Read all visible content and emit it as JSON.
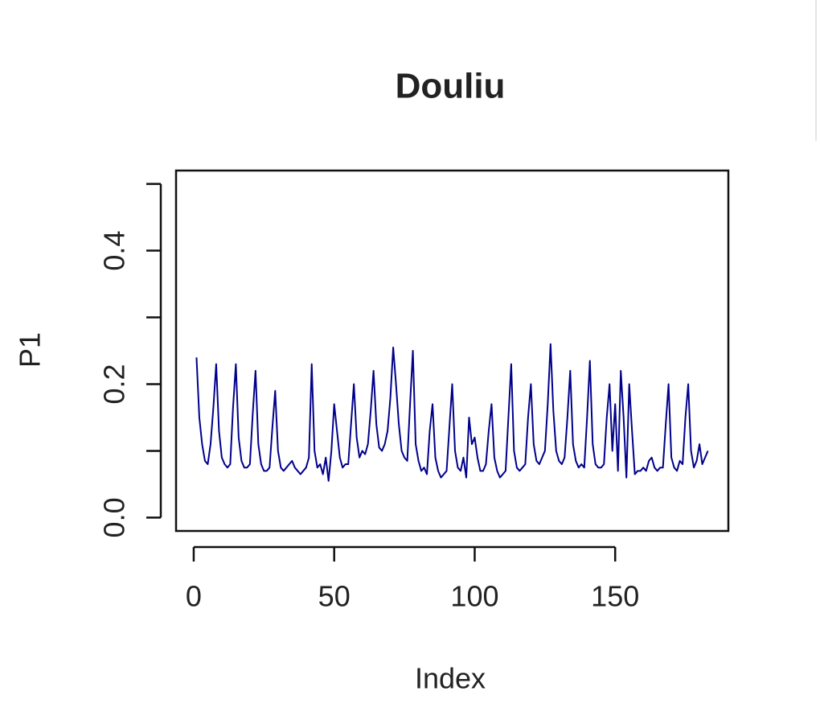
{
  "chart_data": {
    "type": "line",
    "title": "Douliu",
    "x_label": "Index",
    "y_label": "P1",
    "color": "#00008b",
    "x": [
      1,
      2,
      3,
      4,
      5,
      6,
      7,
      8,
      9,
      10,
      11,
      12,
      13,
      14,
      15,
      16,
      17,
      18,
      19,
      20,
      21,
      22,
      23,
      24,
      25,
      26,
      27,
      28,
      29,
      30,
      31,
      32,
      33,
      34,
      35,
      36,
      37,
      38,
      39,
      40,
      41,
      42,
      43,
      44,
      45,
      46,
      47,
      48,
      49,
      50,
      51,
      52,
      53,
      54,
      55,
      56,
      57,
      58,
      59,
      60,
      61,
      62,
      63,
      64,
      65,
      66,
      67,
      68,
      69,
      70,
      71,
      72,
      73,
      74,
      75,
      76,
      77,
      78,
      79,
      80,
      81,
      82,
      83,
      84,
      85,
      86,
      87,
      88,
      89,
      90,
      91,
      92,
      93,
      94,
      95,
      96,
      97,
      98,
      99,
      100,
      101,
      102,
      103,
      104,
      105,
      106,
      107,
      108,
      109,
      110,
      111,
      112,
      113,
      114,
      115,
      116,
      117,
      118,
      119,
      120,
      121,
      122,
      123,
      124,
      125,
      126,
      127,
      128,
      129,
      130,
      131,
      132,
      133,
      134,
      135,
      136,
      137,
      138,
      139,
      140,
      141,
      142,
      143,
      144,
      145,
      146,
      147,
      148,
      149,
      150,
      151,
      152,
      153,
      154,
      155,
      156,
      157,
      158,
      159,
      160,
      161,
      162,
      163,
      164,
      165,
      166,
      167,
      168,
      169,
      170,
      171,
      172,
      173,
      174,
      175,
      176,
      177,
      178,
      179,
      180,
      181,
      182,
      183
    ],
    "values": [
      0.24,
      0.15,
      0.11,
      0.085,
      0.08,
      0.11,
      0.165,
      0.23,
      0.13,
      0.09,
      0.08,
      0.075,
      0.08,
      0.165,
      0.23,
      0.12,
      0.085,
      0.075,
      0.075,
      0.08,
      0.155,
      0.22,
      0.11,
      0.08,
      0.07,
      0.07,
      0.075,
      0.135,
      0.19,
      0.1,
      0.075,
      0.07,
      0.075,
      0.08,
      0.085,
      0.075,
      0.07,
      0.065,
      0.07,
      0.075,
      0.09,
      0.23,
      0.1,
      0.075,
      0.08,
      0.065,
      0.09,
      0.055,
      0.1,
      0.17,
      0.13,
      0.09,
      0.075,
      0.08,
      0.08,
      0.14,
      0.2,
      0.12,
      0.09,
      0.1,
      0.095,
      0.11,
      0.16,
      0.22,
      0.14,
      0.105,
      0.1,
      0.11,
      0.13,
      0.18,
      0.255,
      0.2,
      0.14,
      0.1,
      0.09,
      0.085,
      0.17,
      0.25,
      0.11,
      0.085,
      0.07,
      0.075,
      0.065,
      0.13,
      0.17,
      0.09,
      0.07,
      0.06,
      0.065,
      0.07,
      0.135,
      0.2,
      0.1,
      0.075,
      0.07,
      0.09,
      0.06,
      0.15,
      0.11,
      0.12,
      0.09,
      0.07,
      0.07,
      0.08,
      0.13,
      0.17,
      0.09,
      0.07,
      0.06,
      0.065,
      0.07,
      0.15,
      0.23,
      0.1,
      0.075,
      0.07,
      0.075,
      0.08,
      0.15,
      0.2,
      0.11,
      0.085,
      0.08,
      0.09,
      0.1,
      0.17,
      0.26,
      0.16,
      0.1,
      0.085,
      0.08,
      0.09,
      0.15,
      0.22,
      0.11,
      0.085,
      0.075,
      0.08,
      0.075,
      0.15,
      0.235,
      0.11,
      0.08,
      0.075,
      0.075,
      0.08,
      0.15,
      0.2,
      0.1,
      0.17,
      0.07,
      0.22,
      0.15,
      0.06,
      0.2,
      0.13,
      0.065,
      0.07,
      0.07,
      0.075,
      0.07,
      0.085,
      0.09,
      0.075,
      0.07,
      0.075,
      0.075,
      0.14,
      0.2,
      0.09,
      0.075,
      0.07,
      0.085,
      0.08,
      0.15,
      0.2,
      0.1,
      0.075,
      0.085,
      0.11,
      0.08,
      0.09,
      0.1
    ],
    "xlim": [
      -6.28,
      190.28
    ],
    "ylim": [
      -0.02,
      0.52
    ],
    "xticks": [
      0,
      50,
      100,
      150
    ],
    "yticks": [
      {
        "value": 0,
        "label": "0.0"
      },
      0.2,
      0.4
    ],
    "yticks_unlabeled": [
      0.1,
      0.3,
      0.5
    ]
  }
}
